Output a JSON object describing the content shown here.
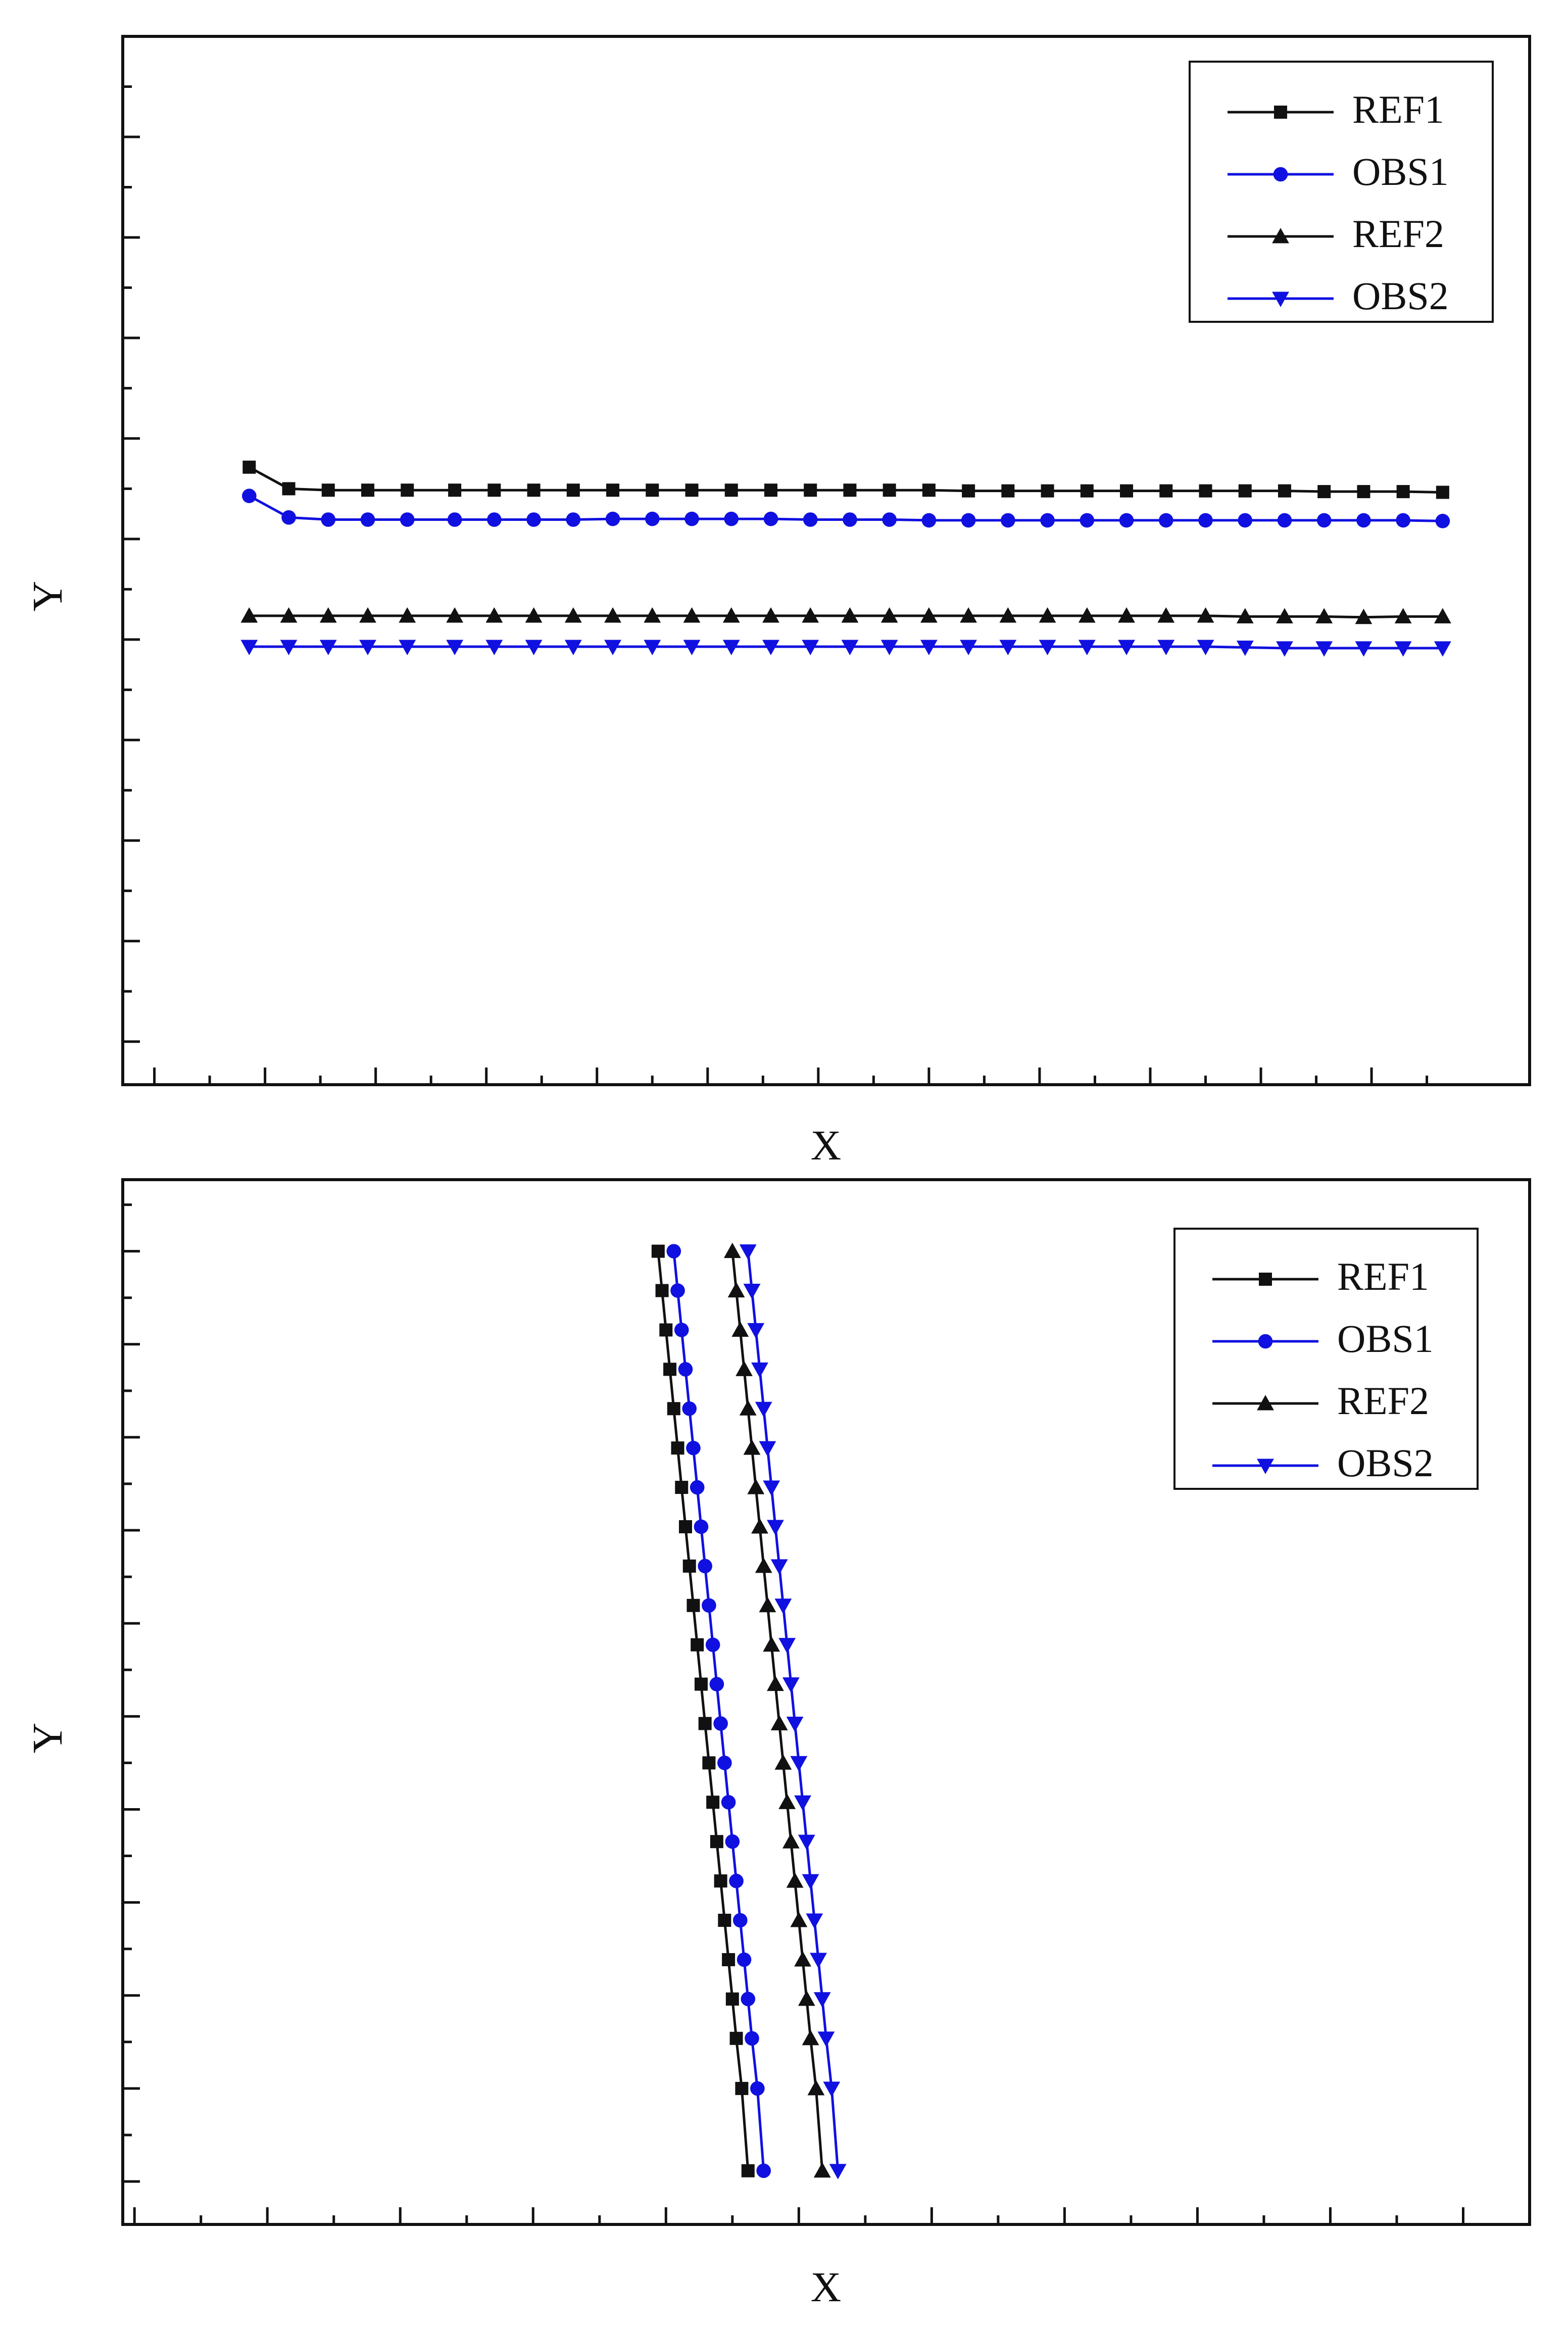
{
  "colors": {
    "black": "#111111",
    "blue": "#1010e0"
  },
  "chart_data": [
    {
      "type": "line",
      "title": "",
      "xlabel": "X",
      "ylabel": "Y",
      "xlim": [
        0,
        17.8
      ],
      "ylim": [
        0,
        14.6
      ],
      "grid": false,
      "legend_position": "top-right",
      "series": [
        {
          "name": "REF1",
          "color": "black",
          "marker": "square",
          "x": [
            1.6,
            2.1,
            2.6,
            3.1,
            3.6,
            4.2,
            4.7,
            5.2,
            5.7,
            6.2,
            6.7,
            7.2,
            7.7,
            8.2,
            8.7,
            9.2,
            9.7,
            10.2,
            10.7,
            11.2,
            11.7,
            12.2,
            12.7,
            13.2,
            13.7,
            14.2,
            14.7,
            15.2,
            15.7,
            16.2,
            16.7
          ],
          "y": [
            8.6,
            8.3,
            8.28,
            8.28,
            8.28,
            8.28,
            8.28,
            8.28,
            8.28,
            8.28,
            8.28,
            8.28,
            8.28,
            8.28,
            8.28,
            8.28,
            8.28,
            8.28,
            8.27,
            8.27,
            8.27,
            8.27,
            8.27,
            8.27,
            8.27,
            8.27,
            8.27,
            8.26,
            8.26,
            8.26,
            8.25
          ]
        },
        {
          "name": "OBS1",
          "color": "blue",
          "marker": "circle",
          "x": [
            1.6,
            2.1,
            2.6,
            3.1,
            3.6,
            4.2,
            4.7,
            5.2,
            5.7,
            6.2,
            6.7,
            7.2,
            7.7,
            8.2,
            8.7,
            9.2,
            9.7,
            10.2,
            10.7,
            11.2,
            11.7,
            12.2,
            12.7,
            13.2,
            13.7,
            14.2,
            14.7,
            15.2,
            15.7,
            16.2,
            16.7
          ],
          "y": [
            8.2,
            7.9,
            7.87,
            7.87,
            7.87,
            7.87,
            7.87,
            7.87,
            7.87,
            7.88,
            7.88,
            7.88,
            7.88,
            7.88,
            7.87,
            7.87,
            7.87,
            7.86,
            7.86,
            7.86,
            7.86,
            7.86,
            7.86,
            7.86,
            7.86,
            7.86,
            7.86,
            7.86,
            7.86,
            7.86,
            7.85
          ]
        },
        {
          "name": "REF2",
          "color": "black",
          "marker": "triangle-up",
          "x": [
            1.6,
            2.1,
            2.6,
            3.1,
            3.6,
            4.2,
            4.7,
            5.2,
            5.7,
            6.2,
            6.7,
            7.2,
            7.7,
            8.2,
            8.7,
            9.2,
            9.7,
            10.2,
            10.7,
            11.2,
            11.7,
            12.2,
            12.7,
            13.2,
            13.7,
            14.2,
            14.7,
            15.2,
            15.7,
            16.2,
            16.7
          ],
          "y": [
            6.53,
            6.53,
            6.53,
            6.53,
            6.53,
            6.53,
            6.53,
            6.53,
            6.53,
            6.53,
            6.53,
            6.53,
            6.53,
            6.53,
            6.53,
            6.53,
            6.53,
            6.53,
            6.53,
            6.53,
            6.53,
            6.53,
            6.53,
            6.53,
            6.53,
            6.52,
            6.52,
            6.52,
            6.51,
            6.52,
            6.52
          ]
        },
        {
          "name": "OBS2",
          "color": "blue",
          "marker": "triangle-down",
          "x": [
            1.6,
            2.1,
            2.6,
            3.1,
            3.6,
            4.2,
            4.7,
            5.2,
            5.7,
            6.2,
            6.7,
            7.2,
            7.7,
            8.2,
            8.7,
            9.2,
            9.7,
            10.2,
            10.7,
            11.2,
            11.7,
            12.2,
            12.7,
            13.2,
            13.7,
            14.2,
            14.7,
            15.2,
            15.7,
            16.2,
            16.7
          ],
          "y": [
            6.1,
            6.1,
            6.1,
            6.1,
            6.1,
            6.1,
            6.1,
            6.1,
            6.1,
            6.1,
            6.1,
            6.1,
            6.1,
            6.1,
            6.1,
            6.1,
            6.1,
            6.1,
            6.1,
            6.1,
            6.1,
            6.1,
            6.1,
            6.1,
            6.1,
            6.09,
            6.08,
            6.08,
            6.08,
            6.08,
            6.08
          ]
        }
      ]
    },
    {
      "type": "line",
      "title": "",
      "xlabel": "X",
      "ylabel": "Y",
      "xlim": [
        0,
        18
      ],
      "ylim": [
        0,
        14.6
      ],
      "grid": false,
      "legend_position": "top-right",
      "series": [
        {
          "name": "REF1",
          "color": "black",
          "marker": "square",
          "y": [
            13.6,
            13.05,
            12.5,
            11.95,
            11.4,
            10.85,
            10.3,
            9.75,
            9.2,
            8.65,
            8.1,
            7.55,
            7.0,
            6.45,
            5.9,
            5.35,
            4.8,
            4.25,
            3.7,
            3.15,
            2.6,
            1.9,
            0.75
          ],
          "x": [
            6.85,
            6.9,
            6.95,
            7.0,
            7.05,
            7.1,
            7.15,
            7.2,
            7.25,
            7.3,
            7.35,
            7.4,
            7.45,
            7.5,
            7.55,
            7.6,
            7.65,
            7.7,
            7.75,
            7.8,
            7.85,
            7.92,
            8.0
          ]
        },
        {
          "name": "OBS1",
          "color": "blue",
          "marker": "circle",
          "y": [
            13.6,
            13.05,
            12.5,
            11.95,
            11.4,
            10.85,
            10.3,
            9.75,
            9.2,
            8.65,
            8.1,
            7.55,
            7.0,
            6.45,
            5.9,
            5.35,
            4.8,
            4.25,
            3.7,
            3.15,
            2.6,
            1.9,
            0.75
          ],
          "x": [
            7.05,
            7.1,
            7.15,
            7.2,
            7.25,
            7.3,
            7.35,
            7.4,
            7.45,
            7.5,
            7.55,
            7.6,
            7.65,
            7.7,
            7.75,
            7.8,
            7.85,
            7.9,
            7.95,
            8.0,
            8.05,
            8.12,
            8.2
          ]
        },
        {
          "name": "REF2",
          "color": "black",
          "marker": "triangle-up",
          "y": [
            13.6,
            13.05,
            12.5,
            11.95,
            11.4,
            10.85,
            10.3,
            9.75,
            9.2,
            8.65,
            8.1,
            7.55,
            7.0,
            6.45,
            5.9,
            5.35,
            4.8,
            4.25,
            3.7,
            3.15,
            2.6,
            1.9,
            0.75
          ],
          "x": [
            7.8,
            7.85,
            7.9,
            7.95,
            8.0,
            8.05,
            8.1,
            8.15,
            8.2,
            8.25,
            8.3,
            8.35,
            8.4,
            8.45,
            8.5,
            8.55,
            8.6,
            8.65,
            8.7,
            8.75,
            8.8,
            8.87,
            8.95
          ]
        },
        {
          "name": "OBS2",
          "color": "blue",
          "marker": "triangle-down",
          "y": [
            13.6,
            13.05,
            12.5,
            11.95,
            11.4,
            10.85,
            10.3,
            9.75,
            9.2,
            8.65,
            8.1,
            7.55,
            7.0,
            6.45,
            5.9,
            5.35,
            4.8,
            4.25,
            3.7,
            3.15,
            2.6,
            1.9,
            0.75
          ],
          "x": [
            8.0,
            8.05,
            8.1,
            8.15,
            8.2,
            8.25,
            8.3,
            8.35,
            8.4,
            8.45,
            8.5,
            8.55,
            8.6,
            8.65,
            8.7,
            8.75,
            8.8,
            8.85,
            8.9,
            8.95,
            9.0,
            9.07,
            9.15
          ]
        }
      ]
    }
  ]
}
